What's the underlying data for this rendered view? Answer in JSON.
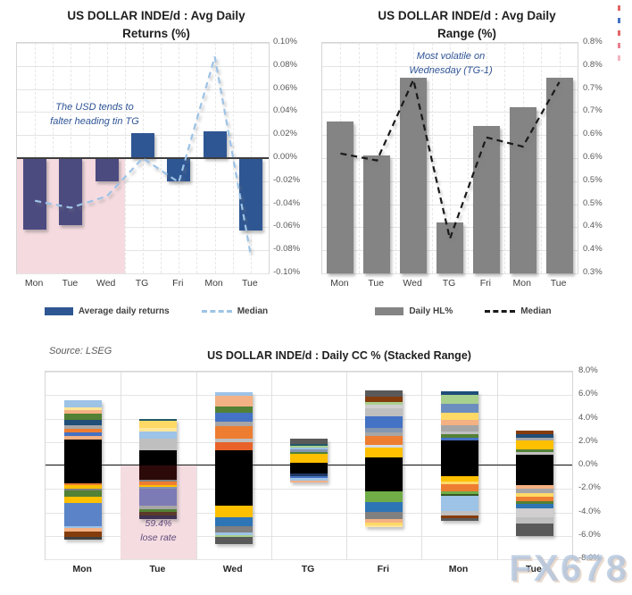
{
  "source_note": "Source: LSEG",
  "watermark": "FX678",
  "edge_marks": {
    "colors": [
      "#E06666",
      "#4472C4",
      "#E06666",
      "#E8818F",
      "#F2B6C1"
    ]
  },
  "chart_data": [
    {
      "type": "bar",
      "title_line1": "US DOLLAR INDE/d : Avg Daily",
      "title_line2": "Returns (%)",
      "annotation_line1": "The USD tends to",
      "annotation_line2": "falter heading tin TG",
      "categories": [
        "Mon",
        "Tue",
        "Wed",
        "TG",
        "Fri",
        "Mon",
        "Tue"
      ],
      "series": [
        {
          "name": "Average daily returns",
          "type": "bar",
          "values": [
            -0.062,
            -0.058,
            -0.02,
            0.022,
            -0.02,
            0.023,
            -0.063
          ]
        },
        {
          "name": "Median",
          "type": "line",
          "values": [
            -0.037,
            -0.043,
            -0.033,
            0.0,
            -0.021,
            0.088,
            -0.084
          ]
        }
      ],
      "ylim": [
        -0.1,
        0.1
      ],
      "y_ticks": [
        "0.10%",
        "0.08%",
        "0.06%",
        "0.04%",
        "0.02%",
        "0.00%",
        "-0.02%",
        "-0.04%",
        "-0.06%",
        "-0.08%",
        "-0.10%"
      ],
      "bar_color": "#2E5693",
      "shaded_bar_color": "#4C4B80",
      "shaded_categories": [
        0,
        1,
        2
      ],
      "median_color": "#9DC3E6",
      "highlight_color": "#F5DBE0",
      "legend": [
        {
          "label": "Average daily returns",
          "swatch": "bar",
          "color": "#2E5693"
        },
        {
          "label": "Median",
          "swatch": "dash",
          "color": "#9DC3E6"
        }
      ]
    },
    {
      "type": "bar",
      "title_line1": "US DOLLAR INDE/d : Avg Daily",
      "title_line2": "Range (%)",
      "annotation_line1": "Most volatile on",
      "annotation_line2": "Wednesday (TG-1)",
      "categories": [
        "Mon",
        "Tue",
        "Wed",
        "TG",
        "Fri",
        "Mon",
        "Tue"
      ],
      "series": [
        {
          "name": "Daily HL%",
          "type": "bar",
          "values": [
            0.63,
            0.555,
            0.725,
            0.41,
            0.62,
            0.66,
            0.725
          ]
        },
        {
          "name": "Median",
          "type": "line",
          "values": [
            0.56,
            0.545,
            0.72,
            0.375,
            0.595,
            0.575,
            0.715
          ]
        }
      ],
      "ylim": [
        0.3,
        0.8
      ],
      "baseline": 0.3,
      "y_ticks": [
        "0.8%",
        "0.8%",
        "0.7%",
        "0.7%",
        "0.6%",
        "0.6%",
        "0.5%",
        "0.5%",
        "0.4%",
        "0.4%",
        "0.3%"
      ],
      "bar_color": "#848484",
      "median_color": "#1a1a1a",
      "legend": [
        {
          "label": "Daily HL%",
          "swatch": "bar",
          "color": "#848484"
        },
        {
          "label": "Median",
          "swatch": "dash",
          "color": "#1a1a1a"
        }
      ]
    },
    {
      "type": "bar",
      "subtype": "stacked",
      "title": "US DOLLAR INDE/d : Daily CC % (Stacked Range)",
      "categories": [
        "Mon",
        "Tue",
        "Wed",
        "TG",
        "Fri",
        "Mon",
        "Tue"
      ],
      "ylim": [
        -8,
        8
      ],
      "y_ticks": [
        "8.0%",
        "6.0%",
        "4.0%",
        "2.0%",
        "0.0%",
        "-2.0%",
        "-4.0%",
        "-6.0%",
        "-8.0%"
      ],
      "highlight": {
        "category_index": 1,
        "from": 0,
        "to": -8,
        "color": "#F4DCE1",
        "label_line1": "59.4%",
        "label_line2": "lose rate",
        "label_color": "#604A7B"
      },
      "bars": [
        {
          "category": "Mon",
          "top": 5.55,
          "bottom": -6.35,
          "segments": [
            [
              0.6,
              "#9DC3E6"
            ],
            [
              0.25,
              "#FFE699"
            ],
            [
              0.3,
              "#F4B183"
            ],
            [
              0.55,
              "#538135"
            ],
            [
              0.45,
              "#1F4E79"
            ],
            [
              0.25,
              "#A6A6A6"
            ],
            [
              0.3,
              "#ED7D31"
            ],
            [
              0.35,
              "#4472C4"
            ],
            [
              0.3,
              "#F4B183"
            ],
            [
              3.7,
              "#000000"
            ],
            [
              0.2,
              "#ED7D31"
            ],
            [
              0.25,
              "#FFC000"
            ],
            [
              0.2,
              "#808080"
            ],
            [
              0.5,
              "#538135"
            ],
            [
              0.55,
              "#FFC000"
            ],
            [
              2.0,
              "#5B84C8"
            ],
            [
              0.15,
              "#9DC3E6"
            ],
            [
              0.25,
              "#F4B183"
            ],
            [
              0.5,
              "#843C0C"
            ],
            [
              0.25,
              "#404040"
            ]
          ]
        },
        {
          "category": "Tue",
          "top": 4.0,
          "bottom": -4.6,
          "segments": [
            [
              0.2,
              "#215968"
            ],
            [
              0.6,
              "#FFD966"
            ],
            [
              0.3,
              "#FFE699"
            ],
            [
              0.6,
              "#9DC3E6"
            ],
            [
              1.0,
              "#BFBFBF"
            ],
            [
              1.3,
              "#000000"
            ],
            [
              1.2,
              "#2D0A0A"
            ],
            [
              0.2,
              "#808080"
            ],
            [
              0.25,
              "#ED7D31"
            ],
            [
              0.15,
              "#FFC000"
            ],
            [
              0.2,
              "#8496B0"
            ],
            [
              1.45,
              "#7D7BB5"
            ],
            [
              0.25,
              "#A6A6A6"
            ],
            [
              0.25,
              "#538135"
            ],
            [
              0.35,
              "#5B3A29"
            ],
            [
              0.3,
              "#403152"
            ]
          ]
        },
        {
          "category": "Wed",
          "top": 6.25,
          "bottom": -6.7,
          "segments": [
            [
              0.3,
              "#9DC3E6"
            ],
            [
              0.9,
              "#F4B183"
            ],
            [
              0.55,
              "#538135"
            ],
            [
              0.8,
              "#4472C4"
            ],
            [
              0.35,
              "#A6A6A6"
            ],
            [
              1.1,
              "#ED7D31"
            ],
            [
              0.25,
              "#BFBFBF"
            ],
            [
              0.7,
              "#E8622A"
            ],
            [
              4.7,
              "#000000"
            ],
            [
              1.05,
              "#FFC000"
            ],
            [
              0.7,
              "#2E75B6"
            ],
            [
              0.6,
              "#808080"
            ],
            [
              0.2,
              "#9DC3E6"
            ],
            [
              0.15,
              "#A9D18E"
            ],
            [
              0.6,
              "#595959"
            ]
          ]
        },
        {
          "category": "TG",
          "top": 2.3,
          "bottom": -1.45,
          "segments": [
            [
              0.45,
              "#595959"
            ],
            [
              0.15,
              "#215968"
            ],
            [
              0.15,
              "#A9D18E"
            ],
            [
              0.2,
              "#9DC3E6"
            ],
            [
              0.2,
              "#8496B0"
            ],
            [
              0.15,
              "#538135"
            ],
            [
              0.75,
              "#FFC000"
            ],
            [
              0.95,
              "#000000"
            ],
            [
              0.2,
              "#1F3864"
            ],
            [
              0.2,
              "#4472C4"
            ],
            [
              0.2,
              "#9DC3E6"
            ],
            [
              0.15,
              "#F4B183"
            ]
          ]
        },
        {
          "category": "Fri",
          "top": 6.4,
          "bottom": -5.25,
          "segments": [
            [
              0.5,
              "#595959"
            ],
            [
              0.5,
              "#843C0C"
            ],
            [
              0.2,
              "#A9D18E"
            ],
            [
              0.3,
              "#D0CECE"
            ],
            [
              0.7,
              "#BFBFBF"
            ],
            [
              1.0,
              "#4472C4"
            ],
            [
              0.35,
              "#8496B0"
            ],
            [
              0.3,
              "#A6A6A6"
            ],
            [
              0.8,
              "#ED7D31"
            ],
            [
              0.25,
              "#D6DCE5"
            ],
            [
              0.8,
              "#FFC000"
            ],
            [
              2.9,
              "#000000"
            ],
            [
              0.95,
              "#70AD47"
            ],
            [
              0.8,
              "#2E75B6"
            ],
            [
              0.6,
              "#808080"
            ],
            [
              0.3,
              "#F4B183"
            ],
            [
              0.25,
              "#FFD966"
            ],
            [
              0.15,
              "#FFE699"
            ]
          ]
        },
        {
          "category": "Mon",
          "top": 6.3,
          "bottom": -4.7,
          "segments": [
            [
              0.25,
              "#1F4E79"
            ],
            [
              0.8,
              "#A9D18E"
            ],
            [
              0.75,
              "#6C8EBF"
            ],
            [
              0.6,
              "#FFD966"
            ],
            [
              0.5,
              "#F4B183"
            ],
            [
              0.5,
              "#A6A6A6"
            ],
            [
              0.25,
              "#BFBFBF"
            ],
            [
              0.25,
              "#538135"
            ],
            [
              0.3,
              "#4472C4"
            ],
            [
              3.0,
              "#000000"
            ],
            [
              0.5,
              "#FFC000"
            ],
            [
              0.2,
              "#FFD966"
            ],
            [
              0.6,
              "#ED7D31"
            ],
            [
              0.2,
              "#70AD47"
            ],
            [
              0.2,
              "#375623"
            ],
            [
              1.3,
              "#9DC3E6"
            ],
            [
              0.4,
              "#BFBFBF"
            ],
            [
              0.2,
              "#843C0C"
            ],
            [
              0.2,
              "#595959"
            ]
          ]
        },
        {
          "category": "Tue",
          "top": 3.0,
          "bottom": -6.05,
          "segments": [
            [
              0.35,
              "#843C0C"
            ],
            [
              0.25,
              "#1F4E79"
            ],
            [
              0.3,
              "#A6A6A6"
            ],
            [
              0.7,
              "#FFC000"
            ],
            [
              0.25,
              "#538135"
            ],
            [
              0.25,
              "#BFBFBF"
            ],
            [
              2.6,
              "#000000"
            ],
            [
              0.3,
              "#F4B183"
            ],
            [
              0.35,
              "#A6A6A6"
            ],
            [
              0.3,
              "#FFD966"
            ],
            [
              0.4,
              "#ED7D31"
            ],
            [
              0.25,
              "#538135"
            ],
            [
              0.35,
              "#2E75B6"
            ],
            [
              0.75,
              "#D0CECE"
            ],
            [
              0.55,
              "#BFBFBF"
            ],
            [
              1.1,
              "#595959"
            ]
          ]
        }
      ]
    }
  ]
}
